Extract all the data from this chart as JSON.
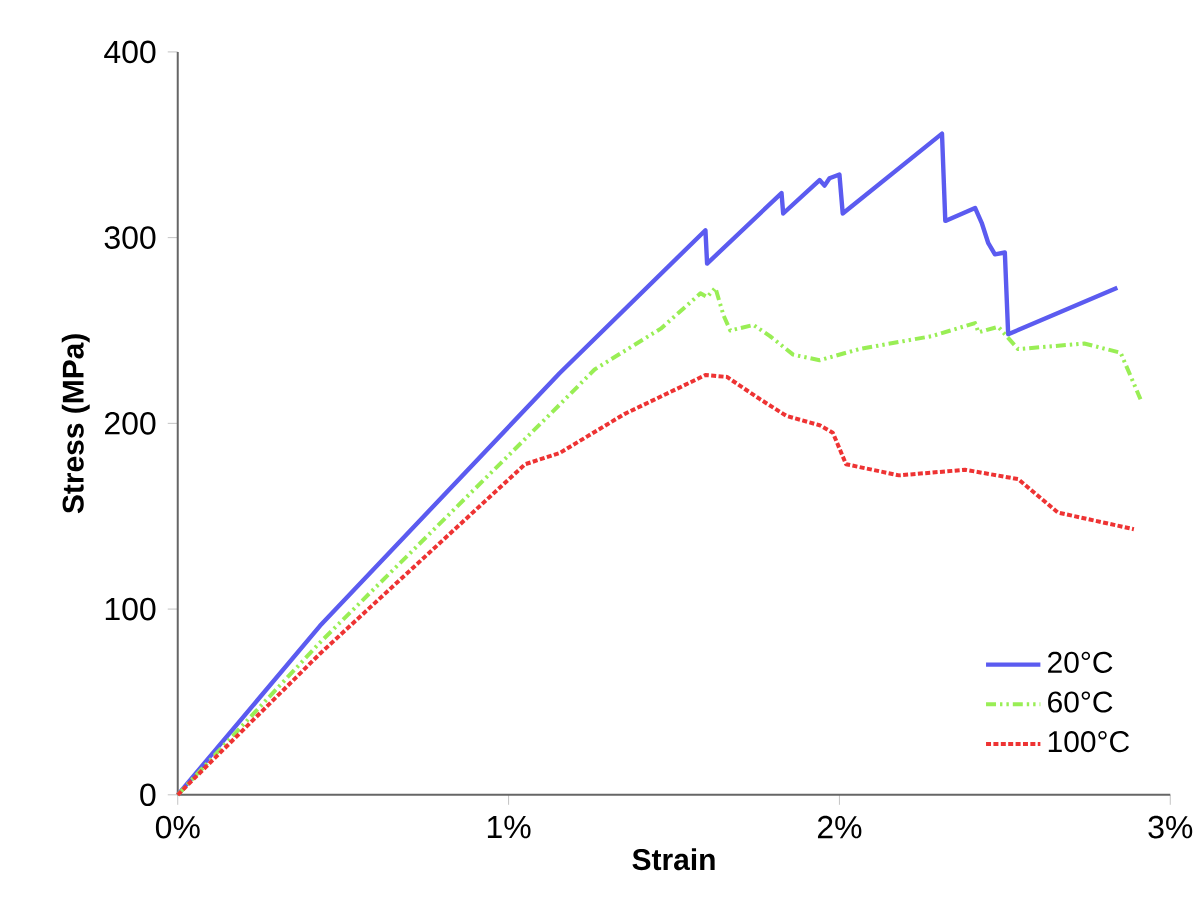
{
  "chart_data": {
    "type": "line",
    "xlabel": "Strain",
    "ylabel": "Stress (MPa)",
    "xlim": [
      0,
      3
    ],
    "ylim": [
      0,
      400
    ],
    "xticks": [
      {
        "value": 0,
        "label": "0%"
      },
      {
        "value": 1,
        "label": "1%"
      },
      {
        "value": 2,
        "label": "2%"
      },
      {
        "value": 3,
        "label": "3%"
      }
    ],
    "yticks": [
      0,
      100,
      200,
      300,
      400
    ],
    "grid": false,
    "legend": "bottom right",
    "marker": "none",
    "series": [
      {
        "name": "20°C",
        "color": "#5b5bf0",
        "line_style": "solid",
        "x": [
          0,
          0.43,
          1.154,
          1.595,
          1.6,
          1.825,
          1.83,
          1.94,
          1.955,
          1.97,
          2.0,
          2.01,
          2.31,
          2.32,
          2.41,
          2.43,
          2.45,
          2.47,
          2.5,
          2.51,
          2.84
        ],
        "values": [
          0,
          91,
          227,
          304,
          286,
          324,
          313,
          331,
          328,
          332,
          334,
          313,
          356,
          309,
          316,
          308,
          297,
          291,
          292,
          248,
          273
        ]
      },
      {
        "name": "60°C",
        "color": "#99ee55",
        "line_style": "dashed",
        "x": [
          0,
          0.43,
          1.154,
          1.26,
          1.46,
          1.58,
          1.6,
          1.625,
          1.65,
          1.67,
          1.74,
          1.79,
          1.86,
          1.94,
          2.06,
          2.28,
          2.41,
          2.42,
          2.48,
          2.54,
          2.74,
          2.85,
          2.91
        ],
        "values": [
          0,
          82,
          210,
          229,
          251,
          270,
          268,
          273,
          258,
          250,
          253,
          247,
          237,
          234,
          240,
          247,
          254,
          249,
          252,
          240,
          243,
          238,
          213
        ]
      },
      {
        "name": "100°C",
        "color": "#ee3333",
        "line_style": "dotted",
        "x": [
          0,
          0.43,
          1.05,
          1.154,
          1.35,
          1.595,
          1.66,
          1.76,
          1.84,
          1.94,
          1.98,
          2.02,
          2.18,
          2.38,
          2.54,
          2.66,
          2.89
        ],
        "values": [
          0,
          76,
          178,
          184,
          205,
          226,
          225,
          213,
          204,
          199,
          195,
          178,
          172,
          175,
          170,
          152,
          143
        ]
      }
    ]
  }
}
